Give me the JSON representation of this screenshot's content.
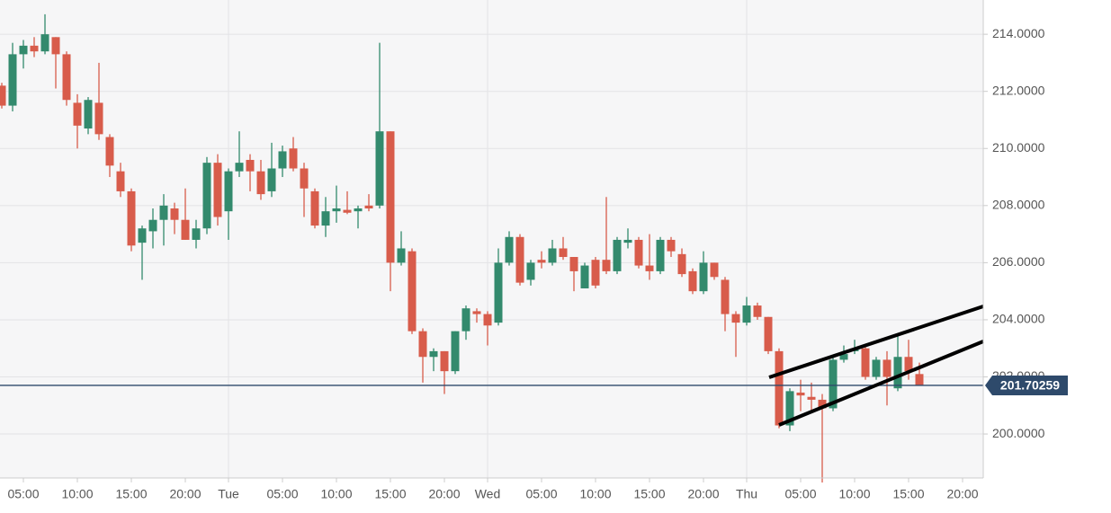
{
  "chart_data": {
    "type": "candlestick",
    "categories": [
      null,
      null,
      "05:00",
      null,
      null,
      null,
      null,
      "10:00",
      null,
      null,
      null,
      null,
      "15:00",
      null,
      null,
      null,
      null,
      "20:00",
      null,
      null,
      null,
      "Tue",
      null,
      null,
      null,
      null,
      "05:00",
      null,
      null,
      null,
      null,
      "10:00",
      null,
      null,
      null,
      null,
      "15:00",
      null,
      null,
      null,
      null,
      "20:00",
      null,
      null,
      null,
      "Wed",
      null,
      null,
      null,
      null,
      "05:00",
      null,
      null,
      null,
      null,
      "10:00",
      null,
      null,
      null,
      null,
      "15:00",
      null,
      null,
      null,
      null,
      "20:00",
      null,
      null,
      null,
      "Thu",
      null,
      null,
      null,
      null,
      "05:00",
      null,
      null,
      null,
      null,
      "10:00",
      null,
      null,
      null,
      null,
      "15:00",
      null,
      null,
      null,
      null,
      "20:00"
    ],
    "open": [
      212.2,
      211.5,
      213.3,
      213.6,
      213.4,
      213.9,
      213.3,
      211.6,
      210.7,
      211.6,
      210.4,
      209.2,
      208.5,
      206.7,
      207.1,
      207.5,
      207.9,
      207.5,
      206.8,
      207.2,
      209.5,
      207.8,
      209.2,
      209.6,
      209.2,
      208.5,
      209.3,
      210.0,
      209.3,
      208.5,
      207.3,
      207.8,
      207.85,
      207.8,
      208.0,
      208.0,
      210.6,
      206.0,
      206.4,
      203.6,
      202.7,
      202.9,
      202.2,
      203.6,
      204.3,
      204.2,
      203.9,
      206.0,
      206.9,
      205.4,
      206.1,
      206.0,
      206.5,
      206.2,
      205.1,
      206.1,
      206.1,
      205.7,
      206.7,
      206.8,
      205.9,
      205.7,
      206.8,
      206.3,
      205.7,
      205.0,
      206.0,
      205.4,
      204.2,
      203.9,
      204.5,
      204.1,
      202.9,
      200.3,
      201.45,
      201.3,
      201.2,
      200.9,
      202.6,
      202.9,
      203.0,
      202.0,
      202.6,
      201.6,
      202.7,
      202.1,
      null,
      null,
      null,
      null
    ],
    "high": [
      212.3,
      213.7,
      213.8,
      213.9,
      214.7,
      213.9,
      213.4,
      211.9,
      211.8,
      213.0,
      210.5,
      209.5,
      208.6,
      207.3,
      207.9,
      208.4,
      208.1,
      208.6,
      207.5,
      209.7,
      209.8,
      209.3,
      210.6,
      209.8,
      209.6,
      210.2,
      210.1,
      210.4,
      209.5,
      208.6,
      208.3,
      208.7,
      208.5,
      208.0,
      208.4,
      213.7,
      210.6,
      207.1,
      206.5,
      203.7,
      203.0,
      202.9,
      203.6,
      204.5,
      204.4,
      204.3,
      206.5,
      207.1,
      207.0,
      206.1,
      206.4,
      206.8,
      206.9,
      206.2,
      206.0,
      206.2,
      208.3,
      206.9,
      207.2,
      206.9,
      207.0,
      206.9,
      206.9,
      206.5,
      205.8,
      206.4,
      206.0,
      205.5,
      204.3,
      204.8,
      204.6,
      204.1,
      203.0,
      201.6,
      201.9,
      201.8,
      201.4,
      202.7,
      203.1,
      203.3,
      203.1,
      202.7,
      202.9,
      203.5,
      203.3,
      202.5,
      null,
      null,
      null,
      null
    ],
    "low": [
      211.4,
      211.3,
      212.8,
      213.2,
      213.3,
      212.1,
      211.5,
      210.0,
      210.5,
      210.3,
      209.0,
      208.3,
      206.4,
      205.4,
      206.5,
      206.6,
      207.0,
      206.8,
      206.5,
      207.0,
      207.3,
      206.8,
      209.0,
      208.5,
      208.2,
      208.3,
      209.0,
      209.2,
      207.6,
      207.2,
      206.9,
      207.4,
      207.7,
      207.2,
      207.8,
      207.9,
      205.0,
      205.9,
      203.5,
      201.8,
      202.2,
      201.4,
      202.1,
      203.3,
      203.9,
      203.1,
      203.8,
      205.9,
      205.2,
      205.2,
      205.8,
      205.9,
      206.1,
      205.0,
      205.1,
      205.1,
      205.6,
      205.6,
      206.5,
      205.8,
      205.4,
      205.6,
      206.2,
      205.5,
      204.9,
      204.9,
      205.4,
      203.6,
      202.7,
      203.8,
      204.0,
      202.8,
      200.2,
      200.1,
      200.8,
      200.8,
      198.3,
      200.8,
      202.5,
      202.8,
      201.9,
      201.9,
      201.0,
      201.5,
      201.9,
      201.7,
      null,
      null,
      null,
      null
    ],
    "close": [
      211.5,
      213.3,
      213.6,
      213.4,
      214.0,
      213.3,
      211.7,
      210.8,
      211.7,
      210.5,
      209.4,
      208.5,
      206.6,
      207.2,
      207.5,
      208.0,
      207.5,
      206.8,
      207.2,
      209.5,
      207.6,
      209.2,
      209.5,
      209.2,
      208.4,
      209.3,
      209.9,
      209.3,
      208.6,
      207.3,
      207.8,
      207.9,
      207.75,
      207.9,
      207.9,
      210.6,
      206.0,
      206.5,
      203.6,
      202.7,
      202.9,
      202.2,
      203.6,
      204.4,
      204.2,
      203.8,
      206.0,
      206.9,
      205.3,
      206.0,
      206.0,
      206.5,
      206.2,
      205.7,
      205.9,
      205.2,
      205.7,
      206.8,
      206.8,
      205.9,
      205.7,
      206.8,
      206.4,
      205.6,
      205.0,
      206.0,
      205.5,
      204.2,
      203.9,
      204.5,
      204.1,
      202.9,
      200.3,
      201.5,
      201.35,
      201.2,
      200.9,
      202.6,
      202.8,
      203.0,
      202.0,
      202.6,
      202.0,
      202.7,
      202.2,
      201.7,
      null,
      null,
      null,
      null
    ],
    "up_color": "#338a6d",
    "down_color": "#d85c4b",
    "ylim": [
      198.46,
      215.2
    ],
    "yticks": [
      {
        "value": 200,
        "label": "200.0000"
      },
      {
        "value": 202,
        "label": "202.0000"
      },
      {
        "value": 204,
        "label": "204.0000"
      },
      {
        "value": 206,
        "label": "206.0000"
      },
      {
        "value": 208,
        "label": "208.0000"
      },
      {
        "value": 210,
        "label": "210.0000"
      },
      {
        "value": 212,
        "label": "212.0000"
      },
      {
        "value": 214,
        "label": "214.0000"
      }
    ],
    "grid": true,
    "last_price": 201.70259,
    "last_price_color": "#2e4a6b"
  }
}
